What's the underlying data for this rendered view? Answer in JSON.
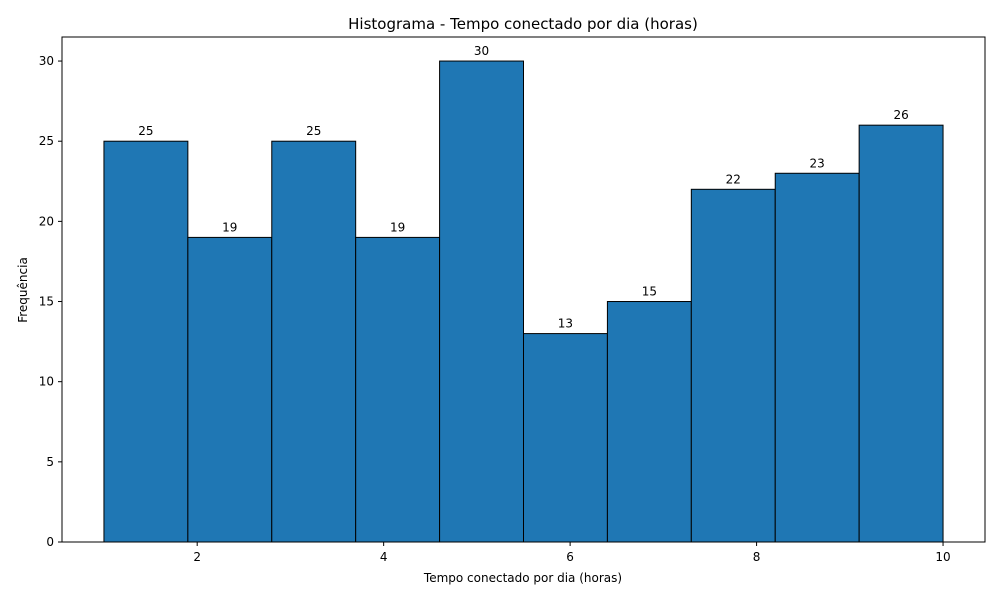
{
  "chart_data": {
    "type": "bar",
    "title": "Histograma - Tempo conectado por dia (horas)",
    "xlabel": "Tempo conectado por dia (horas)",
    "ylabel": "Frequência",
    "bins": [
      {
        "start": 1.0,
        "end": 1.9,
        "value": 25
      },
      {
        "start": 1.9,
        "end": 2.8,
        "value": 19
      },
      {
        "start": 2.8,
        "end": 3.7,
        "value": 25
      },
      {
        "start": 3.7,
        "end": 4.6,
        "value": 19
      },
      {
        "start": 4.6,
        "end": 5.5,
        "value": 30
      },
      {
        "start": 5.5,
        "end": 6.4,
        "value": 13
      },
      {
        "start": 6.4,
        "end": 7.3,
        "value": 15
      },
      {
        "start": 7.3,
        "end": 8.2,
        "value": 22
      },
      {
        "start": 8.2,
        "end": 9.1,
        "value": 23
      },
      {
        "start": 9.1,
        "end": 10.0,
        "value": 26
      }
    ],
    "xlim": [
      0.55,
      10.45
    ],
    "ylim": [
      0,
      31.5
    ],
    "xticks": [
      2,
      4,
      6,
      8,
      10
    ],
    "yticks": [
      0,
      5,
      10,
      15,
      20,
      25,
      30
    ],
    "bar_color": "#1f77b4",
    "edge_color": "#000000",
    "grid": false
  }
}
